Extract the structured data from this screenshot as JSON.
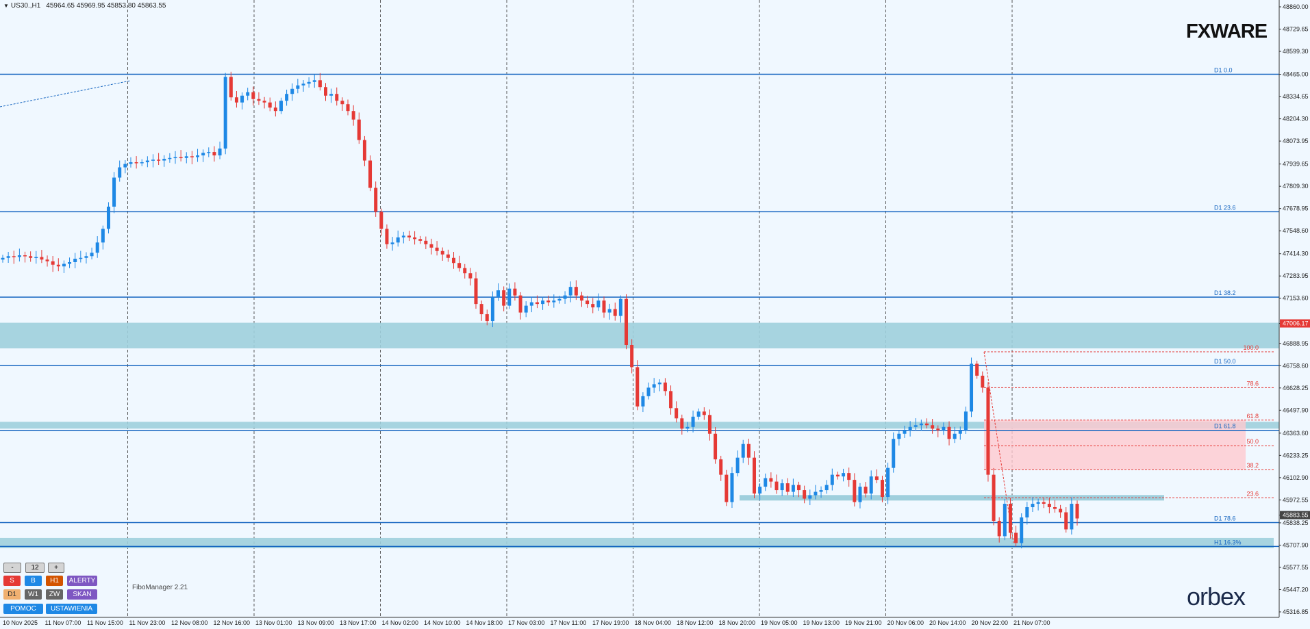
{
  "title_bar": {
    "symbol": "US30.,H1",
    "ohlc": "45964.65 45969.95 45853.80 45863.55"
  },
  "logos": {
    "top": "FXWARE",
    "bottom": "orbex"
  },
  "chart_data": {
    "type": "candlestick",
    "symbol": "US30.",
    "timeframe": "H1",
    "ylim": [
      45316.85,
      48860.0
    ],
    "y_tick_labels": [
      "48860.00",
      "48729.65",
      "48599.30",
      "48465.00",
      "48334.65",
      "48204.30",
      "48073.95",
      "47939.65",
      "47809.30",
      "47678.95",
      "47548.60",
      "47414.30",
      "47283.95",
      "47153.60",
      "47006.17",
      "46888.95",
      "46758.60",
      "46628.25",
      "46497.90",
      "46363.60",
      "46233.25",
      "46102.90",
      "45972.55",
      "45883.55",
      "45838.25",
      "45707.90",
      "45577.55",
      "45447.20",
      "45316.85"
    ],
    "x_tick_labels": [
      "10 Nov 2025",
      "11 Nov 07:00",
      "11 Nov 15:00",
      "11 Nov 23:00",
      "12 Nov 08:00",
      "12 Nov 16:00",
      "13 Nov 01:00",
      "13 Nov 09:00",
      "13 Nov 17:00",
      "14 Nov 02:00",
      "14 Nov 10:00",
      "14 Nov 18:00",
      "17 Nov 03:00",
      "17 Nov 11:00",
      "17 Nov 19:00",
      "18 Nov 04:00",
      "18 Nov 12:00",
      "18 Nov 20:00",
      "19 Nov 05:00",
      "19 Nov 13:00",
      "19 Nov 21:00",
      "20 Nov 06:00",
      "20 Nov 14:00",
      "20 Nov 22:00",
      "21 Nov 07:00"
    ],
    "closes": [
      47390,
      47400,
      47395,
      47405,
      47400,
      47390,
      47395,
      47380,
      47370,
      47350,
      47340,
      47355,
      47365,
      47385,
      47390,
      47400,
      47420,
      47480,
      47560,
      47690,
      47860,
      47920,
      47940,
      47950,
      47945,
      47950,
      47960,
      47965,
      47960,
      47970,
      47975,
      47980,
      47975,
      47985,
      47980,
      47990,
      48005,
      48010,
      47990,
      48030,
      48450,
      48330,
      48300,
      48340,
      48360,
      48320,
      48310,
      48300,
      48270,
      48250,
      48310,
      48350,
      48380,
      48400,
      48410,
      48420,
      48430,
      48390,
      48340,
      48350,
      48310,
      48290,
      48250,
      48200,
      48080,
      47960,
      47800,
      47660,
      47560,
      47470,
      47480,
      47510,
      47520,
      47510,
      47500,
      47490,
      47470,
      47450,
      47430,
      47410,
      47390,
      47360,
      47330,
      47300,
      47270,
      47120,
      47060,
      47020,
      47160,
      47200,
      47110,
      47210,
      47170,
      47070,
      47110,
      47130,
      47120,
      47140,
      47130,
      47140,
      47150,
      47170,
      47220,
      47170,
      47140,
      47120,
      47100,
      47140,
      47070,
      47090,
      47050,
      47150,
      46880,
      46750,
      46520,
      46580,
      46630,
      46650,
      46660,
      46610,
      46510,
      46450,
      46390,
      46400,
      46460,
      46490,
      46470,
      46360,
      46210,
      46120,
      45960,
      46130,
      46220,
      46300,
      46220,
      46010,
      46050,
      46100,
      46080,
      46030,
      46070,
      46020,
      46060,
      46030,
      45980,
      46000,
      46020,
      46030,
      46060,
      46120,
      46110,
      46130,
      46090,
      45960,
      46050,
      46010,
      46110,
      46090,
      45990,
      46160,
      46330,
      46360,
      46380,
      46400,
      46410,
      46420,
      46410,
      46390,
      46380,
      46400,
      46330,
      46360,
      46380,
      46490,
      46770,
      46700,
      46630,
      46120,
      45850,
      45760,
      45950,
      45780,
      45720,
      45870,
      45930,
      45950,
      45960,
      45950,
      45930,
      45920,
      45900,
      45800,
      45950,
      45864
    ],
    "horizontal_levels": [
      {
        "label": "D1 0.0",
        "value": 48465.0
      },
      {
        "label": "D1 23.6",
        "value": 47660.0
      },
      {
        "label": "D1 38.2",
        "value": 47160.0
      },
      {
        "label": "D1 50.0",
        "value": 46760.0
      },
      {
        "label": "D1 61.8",
        "value": 46380.0
      },
      {
        "label": "D1 78.6",
        "value": 45840.0
      },
      {
        "label": "H1 16.3%",
        "value": 45700.0
      }
    ],
    "fib_levels": [
      {
        "label": "100.0",
        "value": 46840
      },
      {
        "label": "78.6",
        "value": 46630
      },
      {
        "label": "61.8",
        "value": 46440
      },
      {
        "label": "50.0",
        "value": 46290
      },
      {
        "label": "38.2",
        "value": 46150
      },
      {
        "label": "23.6",
        "value": 45985
      }
    ],
    "zones": [
      {
        "name": "resistance zone",
        "from": 46860,
        "to": 47010
      },
      {
        "name": "zone 2",
        "from": 46390,
        "to": 46430
      },
      {
        "name": "demand zone",
        "from": 45690,
        "to": 45750
      }
    ],
    "current_price_label": "45883.55",
    "marker_label": "47006.17",
    "colors": {
      "up": "#1e88e5",
      "down": "#e53935",
      "level": "#1565c0",
      "zone": "#9fcfdd",
      "fib": "#e53935",
      "pink": "#ffc9d0",
      "bg": "#f0f8ff"
    }
  },
  "controls": {
    "row1": [
      "-",
      "12",
      "+"
    ],
    "row2": [
      "S",
      "B",
      "H1",
      "ALERTY"
    ],
    "row3": [
      "D1",
      "W1",
      "ZW",
      "SKAN"
    ],
    "row4": [
      "POMOC",
      "USTAWIENIA"
    ],
    "footer": "FiboManager 2.21"
  }
}
